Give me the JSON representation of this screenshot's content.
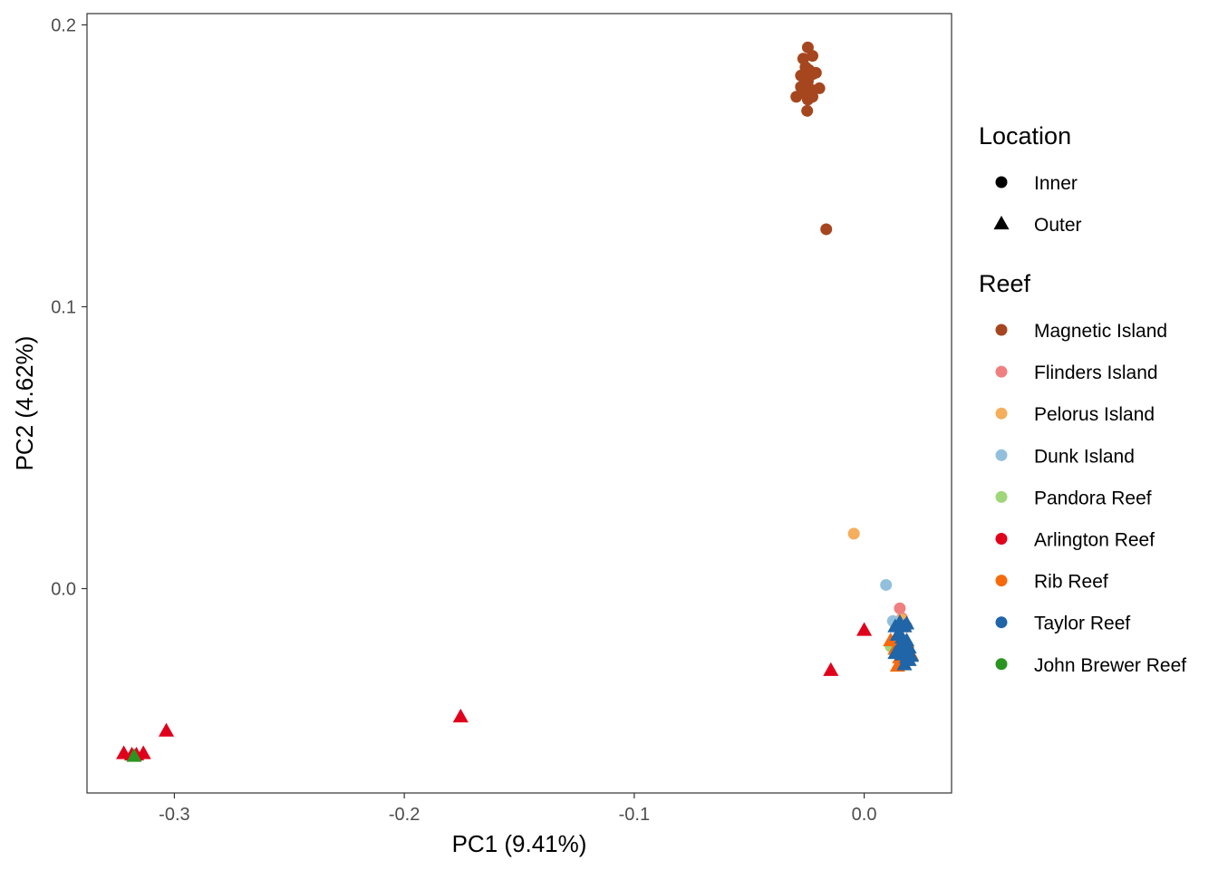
{
  "chart_data": {
    "type": "scatter",
    "title": "",
    "xlabel": "PC1 (9.41%)",
    "ylabel": "PC2 (4.62%)",
    "xlim": [
      -0.338,
      0.038
    ],
    "ylim": [
      -0.0725,
      0.204
    ],
    "xticks": [
      {
        "value": -0.3,
        "label": "-0.3"
      },
      {
        "value": -0.2,
        "label": "-0.2"
      },
      {
        "value": -0.1,
        "label": "-0.1"
      },
      {
        "value": 0.0,
        "label": "0.0"
      }
    ],
    "yticks": [
      {
        "value": 0.0,
        "label": "0.0"
      },
      {
        "value": 0.1,
        "label": "0.1"
      },
      {
        "value": 0.2,
        "label": "0.2"
      }
    ],
    "grid": false,
    "legend_position": "right",
    "legends": [
      {
        "title": "Location",
        "entries": [
          {
            "label": "Inner",
            "shape": "circle"
          },
          {
            "label": "Outer",
            "shape": "triangle"
          }
        ]
      },
      {
        "title": "Reef",
        "entries": [
          {
            "label": "Magnetic Island",
            "color": "#A6461F"
          },
          {
            "label": "Flinders Island",
            "color": "#F08080"
          },
          {
            "label": "Pelorus Island",
            "color": "#F5AE5B"
          },
          {
            "label": "Dunk Island",
            "color": "#92C0DC"
          },
          {
            "label": "Pandora Reef",
            "color": "#9FD67A"
          },
          {
            "label": "Arlington Reef",
            "color": "#E0001B"
          },
          {
            "label": "Rib Reef",
            "color": "#F76A0C"
          },
          {
            "label": "Taylor Reef",
            "color": "#1F65A8"
          },
          {
            "label": "John Brewer Reef",
            "color": "#2A9421"
          }
        ]
      }
    ],
    "series": [
      {
        "name": "Magnetic Island",
        "location": "Inner",
        "shape": "circle",
        "color": "#A6461F",
        "points": [
          [
            -0.0245,
            0.192
          ],
          [
            -0.0265,
            0.188
          ],
          [
            -0.0225,
            0.189
          ],
          [
            -0.0255,
            0.185
          ],
          [
            -0.024,
            0.184
          ],
          [
            -0.0275,
            0.182
          ],
          [
            -0.0225,
            0.1825
          ],
          [
            -0.021,
            0.183
          ],
          [
            -0.026,
            0.179
          ],
          [
            -0.0245,
            0.18
          ],
          [
            -0.0275,
            0.178
          ],
          [
            -0.023,
            0.177
          ],
          [
            -0.0195,
            0.1775
          ],
          [
            -0.0295,
            0.1745
          ],
          [
            -0.0255,
            0.1755
          ],
          [
            -0.0225,
            0.1745
          ],
          [
            -0.0245,
            0.1735
          ],
          [
            -0.0248,
            0.1695
          ],
          [
            -0.0165,
            0.1275
          ]
        ]
      },
      {
        "name": "Flinders Island",
        "location": "Inner",
        "shape": "circle",
        "color": "#F08080",
        "points": [
          [
            0.0155,
            -0.007
          ],
          [
            0.0165,
            -0.0105
          ]
        ]
      },
      {
        "name": "Pelorus Island",
        "location": "Inner",
        "shape": "circle",
        "color": "#F5AE5B",
        "points": [
          [
            -0.0045,
            0.0195
          ],
          [
            0.0135,
            -0.0125
          ],
          [
            0.0165,
            -0.011
          ],
          [
            0.0185,
            -0.0135
          ]
        ]
      },
      {
        "name": "Dunk Island",
        "location": "Inner",
        "shape": "circle",
        "color": "#92C0DC",
        "points": [
          [
            0.0095,
            0.0013
          ],
          [
            0.0125,
            -0.0115
          ],
          [
            0.0145,
            -0.0125
          ]
        ]
      },
      {
        "name": "Pandora Reef",
        "location": "Inner",
        "shape": "circle",
        "color": "#9FD67A",
        "points": [
          [
            0.0115,
            -0.0205
          ],
          [
            0.0135,
            -0.0215
          ]
        ]
      },
      {
        "name": "Arlington Reef",
        "location": "Outer",
        "shape": "triangle",
        "color": "#E0001B",
        "points": [
          [
            -0.322,
            -0.0585
          ],
          [
            -0.3185,
            -0.059
          ],
          [
            -0.3165,
            -0.059
          ],
          [
            -0.3135,
            -0.0585
          ],
          [
            -0.3035,
            -0.0505
          ],
          [
            -0.1755,
            -0.0455
          ],
          [
            -0.0145,
            -0.029
          ],
          [
            0.0,
            -0.0148
          ]
        ]
      },
      {
        "name": "Rib Reef",
        "location": "Outer",
        "shape": "triangle",
        "color": "#F76A0C",
        "points": [
          [
            0.0115,
            -0.0185
          ],
          [
            0.0135,
            -0.0215
          ],
          [
            0.0155,
            -0.0245
          ],
          [
            0.0145,
            -0.0275
          ],
          [
            0.0175,
            -0.0255
          ],
          [
            0.0185,
            -0.019
          ],
          [
            0.0205,
            -0.0235
          ]
        ]
      },
      {
        "name": "Taylor Reef",
        "location": "Outer",
        "shape": "triangle",
        "color": "#1F65A8",
        "points": [
          [
            0.0135,
            -0.0135
          ],
          [
            0.0155,
            -0.012
          ],
          [
            0.0175,
            -0.0135
          ],
          [
            0.0185,
            -0.0125
          ],
          [
            0.0145,
            -0.0165
          ],
          [
            0.0165,
            -0.0175
          ],
          [
            0.0185,
            -0.0185
          ],
          [
            0.0155,
            -0.0205
          ],
          [
            0.0175,
            -0.0215
          ],
          [
            0.0195,
            -0.021
          ],
          [
            0.0135,
            -0.023
          ],
          [
            0.0165,
            -0.0235
          ],
          [
            0.0185,
            -0.0245
          ],
          [
            0.0195,
            -0.0255
          ],
          [
            0.0205,
            -0.024
          ],
          [
            0.0175,
            -0.027
          ]
        ]
      },
      {
        "name": "John Brewer Reef",
        "location": "Outer",
        "shape": "triangle",
        "color": "#2A9421",
        "points": [
          [
            -0.3175,
            -0.0595
          ]
        ]
      }
    ]
  }
}
